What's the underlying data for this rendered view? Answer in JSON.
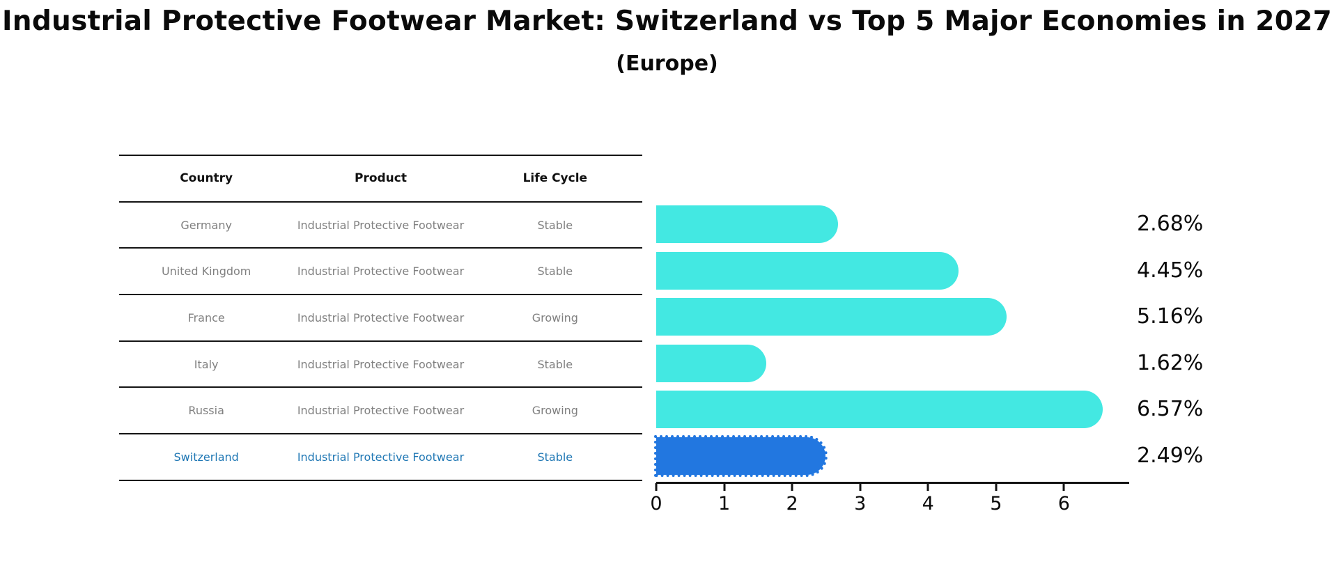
{
  "title": "Industrial Protective Footwear Market: Switzerland vs Top 5 Major Economies in 2027",
  "subtitle": "(Europe)",
  "table": {
    "headers": [
      "Country",
      "Product",
      "Life Cycle"
    ],
    "rows": [
      {
        "country": "Germany",
        "product": "Industrial Protective Footwear",
        "life_cycle": "Stable"
      },
      {
        "country": "United Kingdom",
        "product": "Industrial Protective Footwear",
        "life_cycle": "Stable"
      },
      {
        "country": "France",
        "product": "Industrial Protective Footwear",
        "life_cycle": "Growing"
      },
      {
        "country": "Italy",
        "product": "Industrial Protective Footwear",
        "life_cycle": "Stable"
      },
      {
        "country": "Russia",
        "product": "Industrial Protective Footwear",
        "life_cycle": "Growing"
      },
      {
        "country": "Switzerland",
        "product": "Industrial Protective Footwear",
        "life_cycle": "Stable"
      }
    ],
    "highlight_row": 5
  },
  "chart_data": {
    "type": "bar",
    "orientation": "horizontal",
    "categories": [
      "Germany",
      "United Kingdom",
      "France",
      "Italy",
      "Russia",
      "Switzerland"
    ],
    "values": [
      2.68,
      4.45,
      5.16,
      1.62,
      6.57,
      2.49
    ],
    "value_labels": [
      "2.68%",
      "4.45%",
      "5.16%",
      "1.62%",
      "6.57%",
      "2.49%"
    ],
    "x_ticks": [
      "0",
      "1",
      "2",
      "3",
      "4",
      "5",
      "6"
    ],
    "xlim": [
      0,
      6.96
    ],
    "grid": false,
    "legend": false,
    "bar_color": "#43E8E2",
    "highlight_bar_color": "#2277E0",
    "highlight_index": 5
  },
  "colors": {
    "highlight_text": "#1f77b4",
    "table_text": "#808080",
    "header_text": "#111111",
    "axis": "#141414"
  }
}
